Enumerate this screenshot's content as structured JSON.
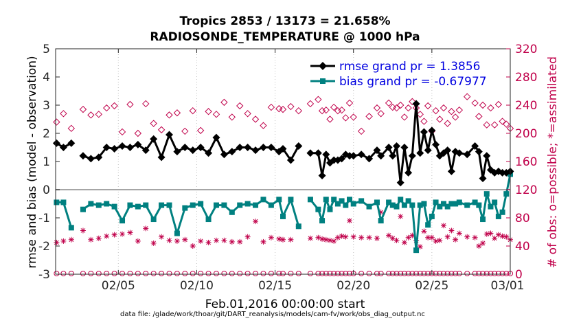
{
  "chart_data": {
    "type": "line",
    "title": [
      "Tropics 2853 / 13173 = 21.658%",
      "RADIOSONDE_TEMPERATURE @ 1000 hPa"
    ],
    "ylabel": "rmse and bias (model - observation)",
    "ylabel_right": "# of obs: o=possible; *=assimilated",
    "xlabel": "Feb.01,2016 00:00:00 start",
    "footnote": "data file: /glade/work/thoar/git/DART_reanalysis/models/cam-fv/work/obs_diag_output.nc",
    "x_unit": "days since Feb.01,2016 00:00",
    "xlim": [
      0.0,
      29.0
    ],
    "ylim": [
      -3,
      5
    ],
    "ylim_right": [
      0,
      320
    ],
    "x_ticks": [
      4,
      9,
      14,
      19,
      24,
      29
    ],
    "x_tick_labels": [
      "02/05",
      "02/10",
      "02/15",
      "02/20",
      "02/25",
      "03/01"
    ],
    "y_ticks": [
      -3,
      -2,
      -1,
      0,
      1,
      2,
      3,
      4,
      5
    ],
    "y_tick_labels": [
      "-3",
      "-2",
      "-1",
      "0",
      "1",
      "2",
      "3",
      "4",
      "5"
    ],
    "y_ticks_right": [
      0,
      40,
      80,
      120,
      160,
      200,
      240,
      280,
      320
    ],
    "y_tick_labels_right": [
      "0",
      "40",
      "80",
      "120",
      "160",
      "200",
      "240",
      "280",
      "320"
    ],
    "grid": "vertical dotted",
    "legend": {
      "position": "top-right",
      "entries": [
        "rmse grand pr = 1.3856",
        "bias grand pr = -0.67977"
      ]
    },
    "colors": {
      "rmse": "#000000",
      "bias": "#008080",
      "obs": "#c0004a",
      "zero_line": "#a6a6a6",
      "legend_text": "#0000e0"
    },
    "series": [
      {
        "name": "rmse grand pr = 1.3856",
        "marker": "diamond",
        "x": [
          0.06,
          0.5,
          1.0,
          1.75,
          2.25,
          2.75,
          3.25,
          3.75,
          4.25,
          4.75,
          5.25,
          5.75,
          6.25,
          6.75,
          7.25,
          7.75,
          8.25,
          8.75,
          9.25,
          9.75,
          10.25,
          10.75,
          11.25,
          11.75,
          12.25,
          12.75,
          13.25,
          13.75,
          14.25,
          14.5,
          15.0,
          15.5,
          16.25,
          16.75,
          17.0,
          17.25,
          17.5,
          17.75,
          18.0,
          18.25,
          18.5,
          18.75,
          19.0,
          19.5,
          20.0,
          20.5,
          20.75,
          21.25,
          21.5,
          21.75,
          22.0,
          22.25,
          22.5,
          22.75,
          23.0,
          23.25,
          23.5,
          23.75,
          24.0,
          24.25,
          24.5,
          24.75,
          25.0,
          25.25,
          25.5,
          25.75,
          26.25,
          26.75,
          27.0,
          27.25,
          27.5,
          27.75,
          28.0,
          28.25,
          28.5,
          28.75,
          29.0
        ],
        "y": [
          1.65,
          1.5,
          1.65,
          1.2,
          1.1,
          1.15,
          1.5,
          1.45,
          1.55,
          1.5,
          1.6,
          1.4,
          1.8,
          1.15,
          1.95,
          1.35,
          1.5,
          1.4,
          1.5,
          1.3,
          1.85,
          1.25,
          1.35,
          1.5,
          1.5,
          1.4,
          1.5,
          1.5,
          1.35,
          1.45,
          1.05,
          1.55,
          1.3,
          1.3,
          0.5,
          1.25,
          0.95,
          1.05,
          1.05,
          1.1,
          1.25,
          1.2,
          1.2,
          1.25,
          1.1,
          1.4,
          1.2,
          1.5,
          1.2,
          1.55,
          0.25,
          1.5,
          0.6,
          1.2,
          3.05,
          1.3,
          2.05,
          1.4,
          2.1,
          1.6,
          1.2,
          1.3,
          1.4,
          0.65,
          1.35,
          1.3,
          1.25,
          1.55,
          1.35,
          0.4,
          1.2,
          0.7,
          0.6,
          0.65,
          0.6,
          0.6,
          0.65
        ]
      },
      {
        "name": "bias grand pr = -0.67977",
        "marker": "square",
        "x": [
          0.06,
          0.5,
          1.0,
          1.75,
          2.25,
          2.75,
          3.25,
          3.75,
          4.25,
          4.75,
          5.25,
          5.75,
          6.25,
          6.75,
          7.25,
          7.75,
          8.25,
          8.75,
          9.25,
          9.75,
          10.25,
          10.75,
          11.25,
          11.75,
          12.25,
          12.75,
          13.25,
          13.75,
          14.25,
          14.5,
          15.0,
          15.5,
          16.25,
          16.75,
          17.0,
          17.25,
          17.5,
          17.75,
          18.0,
          18.25,
          18.5,
          18.75,
          19.0,
          19.5,
          20.0,
          20.5,
          20.75,
          21.25,
          21.5,
          21.75,
          22.0,
          22.25,
          22.5,
          22.75,
          23.0,
          23.25,
          23.5,
          23.75,
          24.0,
          24.25,
          24.5,
          24.75,
          25.0,
          25.25,
          25.5,
          25.75,
          26.25,
          26.75,
          27.0,
          27.25,
          27.5,
          27.75,
          28.0,
          28.25,
          28.5,
          28.75,
          29.0
        ],
        "y": [
          -0.45,
          -0.45,
          -1.35,
          -0.7,
          -0.5,
          -0.55,
          -0.5,
          -0.6,
          -1.1,
          -0.55,
          -0.6,
          -0.55,
          -1.05,
          -0.55,
          -0.55,
          -1.55,
          -0.65,
          -0.55,
          -0.5,
          -1.05,
          -0.55,
          -0.55,
          -0.8,
          -0.55,
          -0.5,
          -0.55,
          -0.35,
          -0.55,
          -0.35,
          -0.95,
          -0.35,
          -1.3,
          -0.35,
          -0.7,
          -1.1,
          -0.35,
          -0.7,
          -0.35,
          -0.5,
          -0.4,
          -0.55,
          -0.35,
          -0.5,
          -0.4,
          -0.6,
          -0.45,
          -1.1,
          -0.45,
          -0.55,
          -0.6,
          -0.35,
          -0.55,
          -0.4,
          -0.55,
          -2.15,
          -0.55,
          -0.5,
          -1.25,
          -0.95,
          -0.45,
          -0.6,
          -0.5,
          -0.6,
          -0.5,
          -0.5,
          -0.45,
          -0.55,
          -0.45,
          -0.55,
          -1.05,
          -0.15,
          -0.6,
          -0.45,
          -0.95,
          -0.8,
          -0.15,
          0.55
        ]
      },
      {
        "name": "possible",
        "marker": "circle-open",
        "axis": "right",
        "x": [
          0.06,
          0.5,
          1.0,
          1.75,
          2.25,
          2.75,
          3.25,
          3.75,
          4.25,
          4.75,
          5.25,
          5.75,
          6.25,
          6.75,
          7.25,
          7.75,
          8.25,
          8.75,
          9.25,
          9.75,
          10.25,
          10.75,
          11.25,
          11.75,
          12.25,
          12.75,
          13.25,
          13.75,
          14.25,
          14.5,
          15.0,
          15.5,
          16.25,
          16.75,
          17.0,
          17.25,
          17.5,
          17.75,
          18.0,
          18.25,
          18.5,
          18.75,
          19.0,
          19.5,
          20.0,
          20.5,
          20.75,
          21.25,
          21.5,
          21.75,
          22.0,
          22.25,
          22.5,
          22.75,
          23.0,
          23.25,
          23.5,
          23.75,
          24.0,
          24.25,
          24.5,
          24.75,
          25.0,
          25.25,
          25.5,
          25.75,
          26.25,
          26.75,
          27.0,
          27.25,
          27.5,
          27.75,
          28.0,
          28.25,
          28.5,
          28.75,
          29.0
        ],
        "y": [
          216,
          228,
          207,
          234,
          226,
          227,
          236,
          239,
          202,
          241,
          200,
          242,
          214,
          205,
          226,
          229,
          203,
          232,
          204,
          231,
          227,
          244,
          223,
          239,
          228,
          220,
          211,
          237,
          235,
          234,
          238,
          232,
          242,
          248,
          232,
          233,
          220,
          237,
          232,
          233,
          222,
          243,
          223,
          203,
          224,
          236,
          228,
          243,
          237,
          236,
          240,
          223,
          236,
          245,
          236,
          227,
          217,
          239,
          203,
          232,
          220,
          236,
          214,
          231,
          223,
          233,
          252,
          243,
          224,
          240,
          212,
          236,
          212,
          241,
          217,
          213,
          207
        ]
      },
      {
        "name": "assimilated",
        "marker": "asterisk",
        "axis": "right",
        "x": [
          0.06,
          0.5,
          1.0,
          1.75,
          2.25,
          2.75,
          3.25,
          3.75,
          4.25,
          4.75,
          5.25,
          5.75,
          6.25,
          6.75,
          7.25,
          7.75,
          8.25,
          8.75,
          9.25,
          9.75,
          10.25,
          10.75,
          11.25,
          11.75,
          12.25,
          12.75,
          13.25,
          13.75,
          14.25,
          14.5,
          15.0,
          15.5,
          16.25,
          16.75,
          17.0,
          17.25,
          17.5,
          17.75,
          18.0,
          18.25,
          18.5,
          18.75,
          19.0,
          19.5,
          20.0,
          20.5,
          20.75,
          21.25,
          21.5,
          21.75,
          22.0,
          22.25,
          22.5,
          22.75,
          23.0,
          23.25,
          23.5,
          23.75,
          24.0,
          24.25,
          24.5,
          24.75,
          25.0,
          25.25,
          25.5,
          25.75,
          26.25,
          26.75,
          27.0,
          27.25,
          27.5,
          27.75,
          28.0,
          28.25,
          28.5,
          28.75,
          29.0
        ],
        "y": [
          45,
          47,
          49,
          62,
          49,
          51,
          54,
          56,
          57,
          59,
          47,
          65,
          44,
          53,
          48,
          47,
          49,
          40,
          47,
          45,
          48,
          48,
          46,
          46,
          53,
          75,
          46,
          52,
          50,
          49,
          49,
          68,
          51,
          52,
          50,
          49,
          48,
          47,
          52,
          54,
          53,
          76,
          53,
          52,
          52,
          51,
          88,
          55,
          51,
          48,
          82,
          45,
          52,
          55,
          48,
          39,
          61,
          52,
          52,
          47,
          48,
          69,
          53,
          62,
          49,
          58,
          53,
          52,
          40,
          44,
          57,
          58,
          51,
          56,
          54,
          53,
          49
        ]
      }
    ]
  }
}
